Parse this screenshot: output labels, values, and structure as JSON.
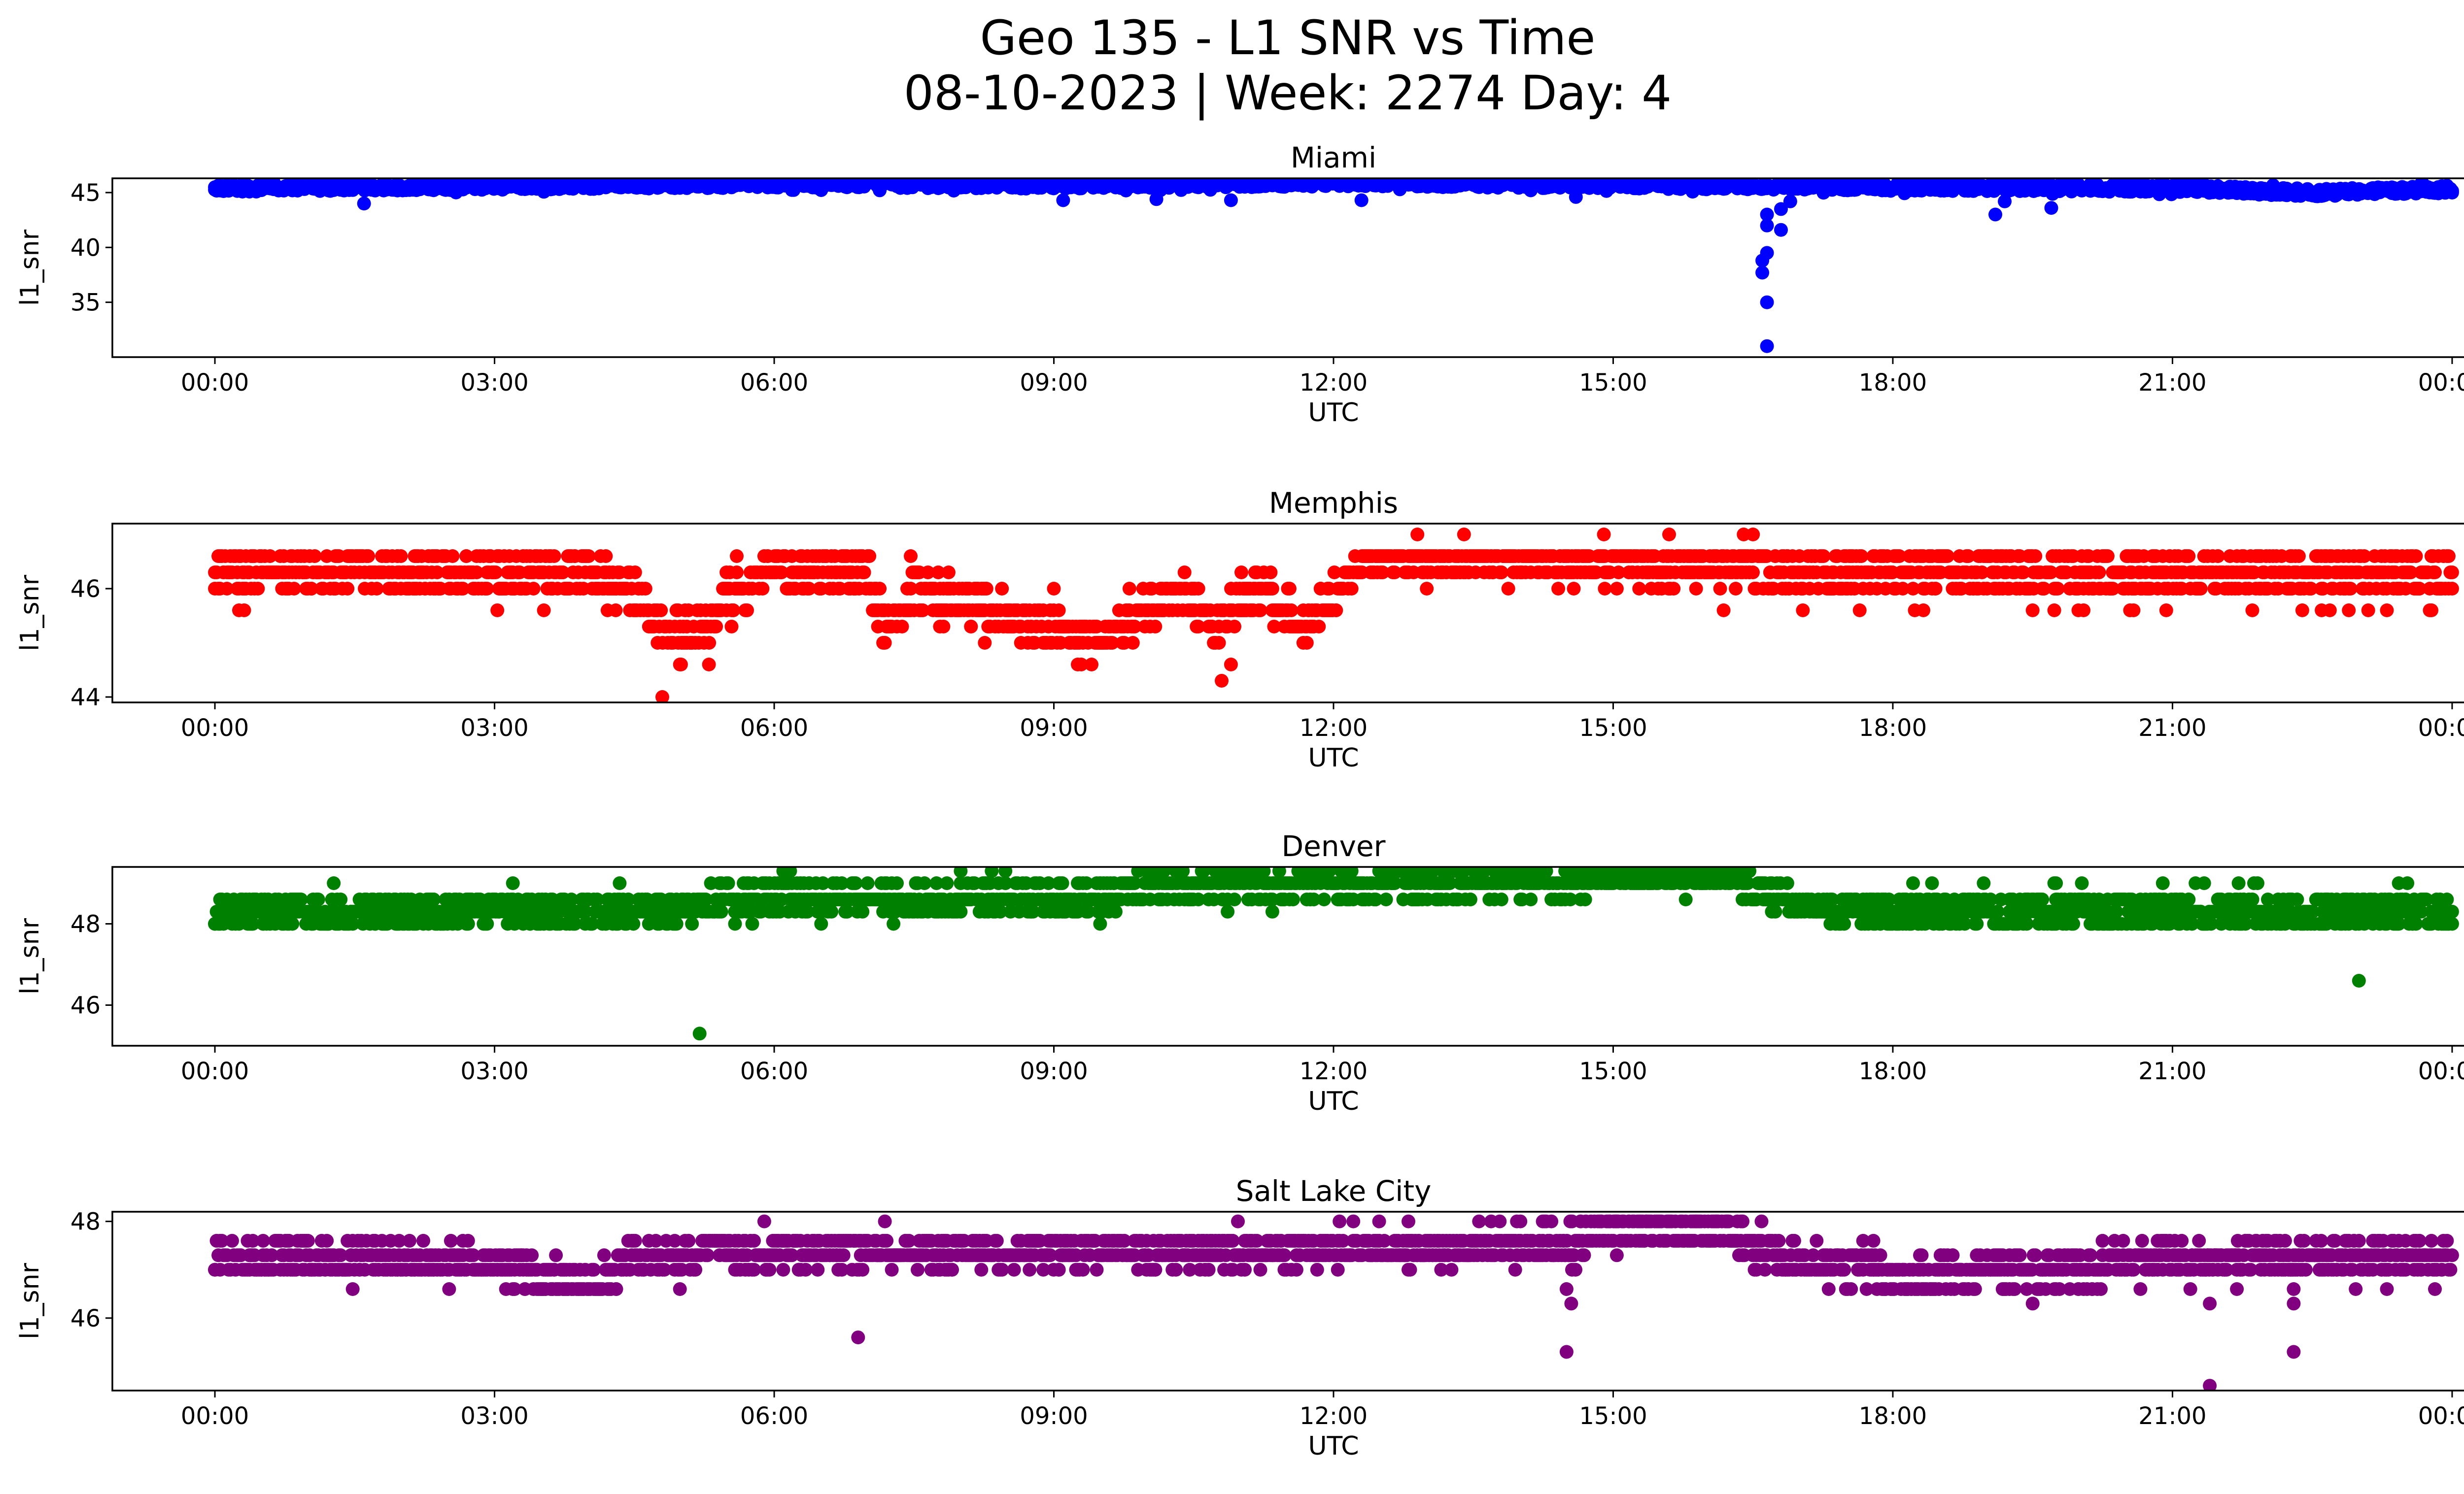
{
  "figure": {
    "title_line1": "Geo 135 - L1 SNR vs Time",
    "title_line2": "08-10-2023 | Week: 2274 Day: 4"
  },
  "chart_data": [
    {
      "type": "scatter",
      "title": "Miami",
      "xlabel": "UTC",
      "ylabel": "l1_snr",
      "color": "#0000ff",
      "x_ticks": [
        "00:00",
        "03:00",
        "06:00",
        "09:00",
        "12:00",
        "15:00",
        "18:00",
        "21:00",
        "00:00"
      ],
      "y_ticks": [
        35,
        40,
        45
      ],
      "xlim_hours": [
        -1.1,
        25.1
      ],
      "ylim": [
        30,
        46.3
      ],
      "baseline": [
        [
          0,
          45.4
        ],
        [
          3,
          45.6
        ],
        [
          6,
          45.8
        ],
        [
          9,
          45.7
        ],
        [
          12,
          45.9
        ],
        [
          15,
          45.7
        ],
        [
          18,
          45.5
        ],
        [
          21,
          45.4
        ],
        [
          22.5,
          45
        ],
        [
          24,
          45.3
        ]
      ],
      "band": 0.35,
      "outliers": [
        [
          1.6,
          44.0
        ],
        [
          9.1,
          44.3
        ],
        [
          10.1,
          44.4
        ],
        [
          10.9,
          44.3
        ],
        [
          12.3,
          44.3
        ],
        [
          14.6,
          44.6
        ],
        [
          16.65,
          43.0
        ],
        [
          16.65,
          42.0
        ],
        [
          16.65,
          39.5
        ],
        [
          16.6,
          38.8
        ],
        [
          16.6,
          37.7
        ],
        [
          16.65,
          35.0
        ],
        [
          16.65,
          31.0
        ],
        [
          16.8,
          41.6
        ],
        [
          16.8,
          43.5
        ],
        [
          16.9,
          44.2
        ],
        [
          19.1,
          43.0
        ],
        [
          19.2,
          44.2
        ],
        [
          19.7,
          43.6
        ]
      ]
    },
    {
      "type": "scatter",
      "title": "Memphis",
      "xlabel": "UTC",
      "ylabel": "l1_snr",
      "color": "#ff0000",
      "x_ticks": [
        "00:00",
        "03:00",
        "06:00",
        "09:00",
        "12:00",
        "15:00",
        "18:00",
        "21:00",
        "00:00"
      ],
      "y_ticks": [
        44,
        46
      ],
      "xlim_hours": [
        -1.1,
        25.1
      ],
      "ylim": [
        43.9,
        47.2
      ],
      "levels": [
        44.6,
        45.0,
        45.3,
        45.6,
        46.0,
        46.3,
        46.6
      ],
      "baseline": [
        [
          0,
          46.3
        ],
        [
          3.8,
          46.3
        ],
        [
          4.5,
          46.0
        ],
        [
          4.8,
          45.3
        ],
        [
          5.3,
          45.3
        ],
        [
          5.6,
          46.0
        ],
        [
          6.0,
          46.3
        ],
        [
          7.0,
          46.3
        ],
        [
          7.2,
          45.3
        ],
        [
          7.5,
          46.0
        ],
        [
          8.3,
          45.6
        ],
        [
          8.8,
          45.3
        ],
        [
          9.5,
          45.0
        ],
        [
          10.0,
          45.6
        ],
        [
          10.3,
          46.0
        ],
        [
          10.8,
          45.3
        ],
        [
          11.2,
          46.0
        ],
        [
          11.7,
          45.3
        ],
        [
          12.0,
          46.0
        ],
        [
          12.4,
          46.6
        ],
        [
          17.0,
          46.3
        ],
        [
          17.5,
          46.3
        ],
        [
          24,
          46.3
        ]
      ],
      "band": 0.35,
      "outliers": [
        [
          4.3,
          45.6
        ],
        [
          4.8,
          44.0
        ],
        [
          5.0,
          44.6
        ],
        [
          5.3,
          44.6
        ],
        [
          9.0,
          46.0
        ],
        [
          10.8,
          44.3
        ],
        [
          10.9,
          44.6
        ],
        [
          12.9,
          47.0
        ],
        [
          13.4,
          47.0
        ],
        [
          13.0,
          46.0
        ],
        [
          14.9,
          47.0
        ],
        [
          15.6,
          47.0
        ],
        [
          16.4,
          47.0
        ],
        [
          16.5,
          47.0
        ],
        [
          19.5,
          45.6
        ],
        [
          22.6,
          45.6
        ],
        [
          23.1,
          45.6
        ],
        [
          23.3,
          45.6
        ]
      ]
    },
    {
      "type": "scatter",
      "title": "Denver",
      "xlabel": "UTC",
      "ylabel": "l1_snr",
      "color": "#008000",
      "x_ticks": [
        "00:00",
        "03:00",
        "06:00",
        "09:00",
        "12:00",
        "15:00",
        "18:00",
        "21:00",
        "00:00"
      ],
      "y_ticks": [
        46,
        48
      ],
      "xlim_hours": [
        -1.1,
        25.1
      ],
      "ylim": [
        45.0,
        49.4
      ],
      "levels": [
        48.0,
        48.3,
        48.6,
        49.0,
        49.3
      ],
      "baseline": [
        [
          0,
          48.3
        ],
        [
          3.8,
          48.3
        ],
        [
          5.0,
          48.4
        ],
        [
          5.5,
          48.6
        ],
        [
          9.5,
          48.6
        ],
        [
          10.0,
          49.0
        ],
        [
          12.0,
          49.0
        ],
        [
          14.5,
          49.0
        ],
        [
          15.0,
          49.2
        ],
        [
          16.3,
          49.2
        ],
        [
          16.8,
          48.6
        ],
        [
          17.5,
          48.3
        ],
        [
          24,
          48.3
        ]
      ],
      "band": 0.35,
      "outliers": [
        [
          3.6,
          48.0
        ],
        [
          3.7,
          48.0
        ],
        [
          5.2,
          45.3
        ],
        [
          14.7,
          48.6
        ],
        [
          18.5,
          48.0
        ],
        [
          19.4,
          48.0
        ],
        [
          19.7,
          48.0
        ],
        [
          20.3,
          48.0
        ],
        [
          23.0,
          46.6
        ],
        [
          23.0,
          48.0
        ],
        [
          22.6,
          48.0
        ]
      ]
    },
    {
      "type": "scatter",
      "title": "Salt Lake City",
      "xlabel": "UTC",
      "ylabel": "l1_snr",
      "color": "#800080",
      "x_ticks": [
        "00:00",
        "03:00",
        "06:00",
        "09:00",
        "12:00",
        "15:00",
        "18:00",
        "21:00",
        "00:00"
      ],
      "y_ticks": [
        46,
        48
      ],
      "xlim_hours": [
        -1.1,
        25.1
      ],
      "ylim": [
        44.5,
        48.2
      ],
      "levels": [
        46.6,
        47.0,
        47.3,
        47.6,
        48.0
      ],
      "baseline": [
        [
          0,
          47.2
        ],
        [
          3.0,
          47.2
        ],
        [
          3.6,
          46.8
        ],
        [
          4.1,
          46.8
        ],
        [
          4.4,
          47.2
        ],
        [
          5.3,
          47.4
        ],
        [
          9.0,
          47.4
        ],
        [
          10.0,
          47.4
        ],
        [
          14.5,
          47.5
        ],
        [
          14.8,
          47.8
        ],
        [
          16.2,
          47.8
        ],
        [
          16.5,
          47.4
        ],
        [
          17.0,
          47.2
        ],
        [
          17.8,
          47.0
        ],
        [
          18.0,
          46.7
        ],
        [
          18.5,
          47.0
        ],
        [
          20.2,
          47.0
        ],
        [
          20.5,
          47.2
        ],
        [
          24,
          47.2
        ]
      ],
      "band": 0.35,
      "outliers": [
        [
          6.9,
          45.6
        ],
        [
          14.5,
          46.6
        ],
        [
          14.55,
          46.3
        ],
        [
          14.5,
          45.3
        ],
        [
          19.5,
          46.3
        ],
        [
          21.4,
          44.6
        ],
        [
          21.4,
          46.3
        ],
        [
          22.3,
          46.6
        ],
        [
          22.3,
          46.3
        ],
        [
          22.3,
          45.3
        ],
        [
          23.3,
          46.6
        ],
        [
          21.7,
          47.6
        ],
        [
          21.9,
          47.6
        ],
        [
          23.0,
          47.6
        ],
        [
          23.5,
          47.6
        ]
      ]
    }
  ]
}
